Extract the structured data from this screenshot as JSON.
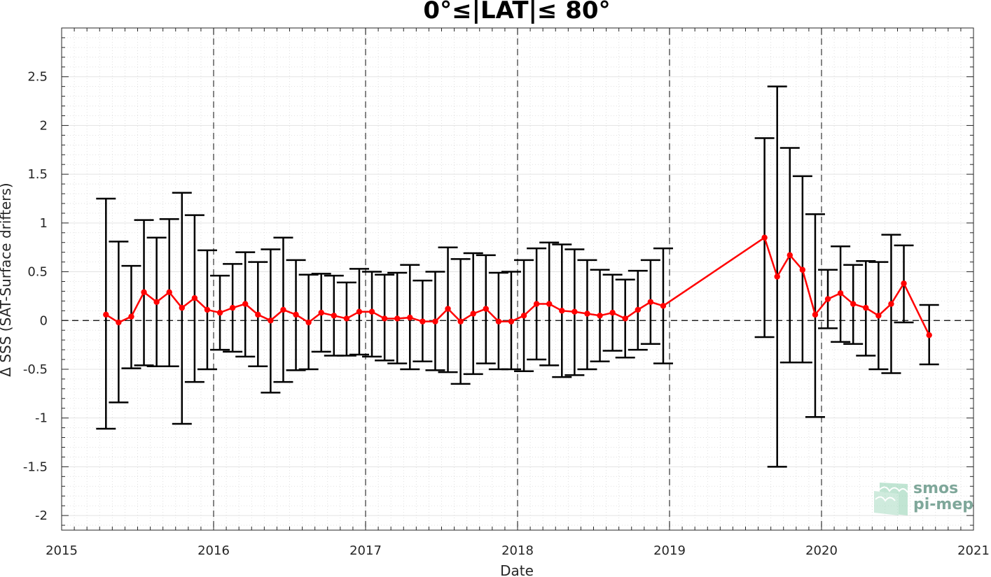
{
  "chart_data": {
    "type": "line",
    "title": "0°≤|LAT|≤ 80°",
    "xlabel": "Date",
    "ylabel": "Δ SSS (SAT-Surface drifters)",
    "xlim": [
      2015,
      2021
    ],
    "ylim": [
      -2.15,
      3.0
    ],
    "x_ticks": [
      "2015",
      "2016",
      "2017",
      "2018",
      "2019",
      "2020",
      "2021"
    ],
    "y_ticks": [
      "-2",
      "-1.5",
      "-1",
      "-0.5",
      "0",
      "0.5",
      "1",
      "1.5",
      "2",
      "2.5"
    ],
    "year_dividers": [
      2016,
      2017,
      2018,
      2019,
      2020
    ],
    "grid": true,
    "line_color": "#ff0000",
    "errorbar_color": "#000000",
    "series": [
      {
        "x": [
          "2015-04",
          "2015-05",
          "2015-06",
          "2015-07",
          "2015-08",
          "2015-09",
          "2015-10",
          "2015-11",
          "2015-12",
          "2016-01",
          "2016-02",
          "2016-03",
          "2016-04",
          "2016-05",
          "2016-06",
          "2016-07",
          "2016-08",
          "2016-09",
          "2016-10",
          "2016-11",
          "2016-12",
          "2017-01",
          "2017-02",
          "2017-03",
          "2017-04",
          "2017-05",
          "2017-06",
          "2017-07",
          "2017-08",
          "2017-09",
          "2017-10",
          "2017-11",
          "2017-12",
          "2018-01",
          "2018-02",
          "2018-03",
          "2018-04",
          "2018-05",
          "2018-06",
          "2018-07",
          "2018-08",
          "2018-09",
          "2018-10",
          "2018-11",
          "2018-12",
          "2019-08",
          "2019-09",
          "2019-10",
          "2019-11",
          "2019-12",
          "2020-01",
          "2020-02",
          "2020-03",
          "2020-04",
          "2020-05",
          "2020-06",
          "2020-07",
          "2020-09"
        ],
        "values": [
          0.06,
          -0.02,
          0.04,
          0.29,
          0.19,
          0.29,
          0.13,
          0.23,
          0.11,
          0.08,
          0.13,
          0.17,
          0.06,
          0.0,
          0.11,
          0.06,
          -0.02,
          0.08,
          0.05,
          0.02,
          0.09,
          0.09,
          0.02,
          0.02,
          0.03,
          -0.01,
          -0.01,
          0.12,
          -0.01,
          0.07,
          0.12,
          -0.01,
          -0.01,
          0.05,
          0.17,
          0.17,
          0.1,
          0.09,
          0.07,
          0.05,
          0.08,
          0.02,
          0.11,
          0.19,
          0.15,
          0.85,
          0.45,
          0.67,
          0.52,
          0.06,
          0.22,
          0.28,
          0.17,
          0.13,
          0.05,
          0.17,
          0.38,
          -0.15
        ],
        "upper": [
          1.25,
          0.81,
          0.56,
          1.03,
          0.85,
          1.04,
          1.31,
          1.08,
          0.72,
          0.46,
          0.58,
          0.7,
          0.6,
          0.73,
          0.85,
          0.62,
          0.47,
          0.48,
          0.46,
          0.39,
          0.53,
          0.5,
          0.47,
          0.49,
          0.57,
          0.41,
          0.5,
          0.75,
          0.63,
          0.69,
          0.67,
          0.49,
          0.5,
          0.62,
          0.74,
          0.8,
          0.78,
          0.73,
          0.62,
          0.52,
          0.47,
          0.42,
          0.51,
          0.62,
          0.74,
          1.87,
          2.4,
          1.77,
          1.48,
          1.09,
          0.52,
          0.76,
          0.57,
          0.61,
          0.6,
          0.88,
          0.77,
          0.16
        ],
        "lower": [
          -1.11,
          -0.84,
          -0.49,
          -0.46,
          -0.47,
          -0.47,
          -1.06,
          -0.63,
          -0.5,
          -0.3,
          -0.32,
          -0.37,
          -0.47,
          -0.74,
          -0.63,
          -0.51,
          -0.5,
          -0.32,
          -0.36,
          -0.36,
          -0.35,
          -0.37,
          -0.41,
          -0.44,
          -0.5,
          -0.42,
          -0.51,
          -0.53,
          -0.65,
          -0.55,
          -0.44,
          -0.5,
          -0.5,
          -0.52,
          -0.4,
          -0.46,
          -0.58,
          -0.56,
          -0.5,
          -0.42,
          -0.31,
          -0.38,
          -0.3,
          -0.24,
          -0.44,
          -0.17,
          -1.5,
          -0.43,
          -0.43,
          -0.99,
          -0.08,
          -0.22,
          -0.24,
          -0.36,
          -0.5,
          -0.54,
          -0.02,
          -0.45
        ]
      }
    ]
  },
  "logo": {
    "line1": "smos",
    "line2": "pi-mep"
  }
}
